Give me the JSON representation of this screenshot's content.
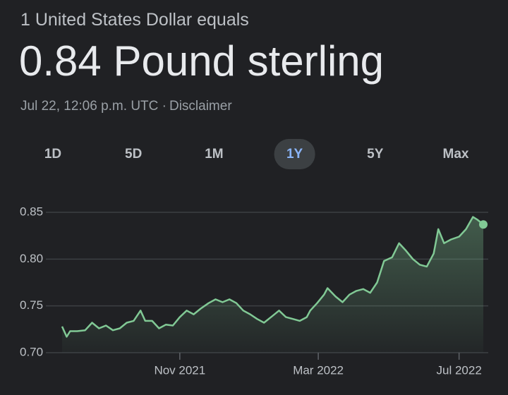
{
  "header": {
    "subtitle": "1 United States Dollar equals",
    "rate": "0.84 Pound sterling",
    "timestamp": "Jul 22, 12:06 p.m. UTC ·",
    "disclaimer": "Disclaimer"
  },
  "ranges": {
    "options": [
      "1D",
      "5D",
      "1M",
      "1Y",
      "5Y",
      "Max"
    ],
    "selected": 3
  },
  "chart_data": {
    "type": "line",
    "x": [
      0,
      4,
      7,
      13,
      20,
      26,
      32,
      38,
      44,
      50,
      56,
      62,
      68,
      72,
      78,
      84,
      90,
      96,
      102,
      108,
      114,
      120,
      127,
      133,
      139,
      145,
      151,
      157,
      163,
      169,
      175,
      182,
      188,
      194,
      200,
      206,
      212,
      215,
      221,
      227,
      230,
      237,
      243,
      249,
      255,
      261,
      267,
      273,
      279,
      286,
      292,
      298,
      304,
      310,
      316,
      322,
      326,
      331,
      337,
      344,
      350,
      356,
      360,
      365
    ],
    "series": [
      {
        "color": "#81c995",
        "values": [
          0.728,
          0.717,
          0.723,
          0.723,
          0.724,
          0.732,
          0.726,
          0.729,
          0.724,
          0.726,
          0.732,
          0.734,
          0.745,
          0.734,
          0.734,
          0.726,
          0.73,
          0.729,
          0.738,
          0.745,
          0.741,
          0.747,
          0.753,
          0.757,
          0.754,
          0.757,
          0.753,
          0.745,
          0.741,
          0.736,
          0.732,
          0.739,
          0.745,
          0.738,
          0.736,
          0.734,
          0.738,
          0.745,
          0.753,
          0.762,
          0.769,
          0.76,
          0.754,
          0.762,
          0.766,
          0.768,
          0.764,
          0.775,
          0.798,
          0.802,
          0.817,
          0.809,
          0.8,
          0.794,
          0.792,
          0.806,
          0.832,
          0.817,
          0.821,
          0.824,
          0.832,
          0.845,
          0.842,
          0.837
        ]
      }
    ],
    "xlim": [
      0,
      365
    ],
    "xticks": [
      {
        "value": 102,
        "label": "Nov 2021"
      },
      {
        "value": 222,
        "label": "Mar 2022"
      },
      {
        "value": 344,
        "label": "Jul 2022"
      }
    ],
    "ylim": [
      0.7,
      0.85
    ],
    "yticks": [
      0.85,
      {
        "value": 0.8,
        "label": "0.80"
      },
      0.75,
      {
        "value": 0.7,
        "label": "0.70"
      }
    ],
    "grid": true
  }
}
